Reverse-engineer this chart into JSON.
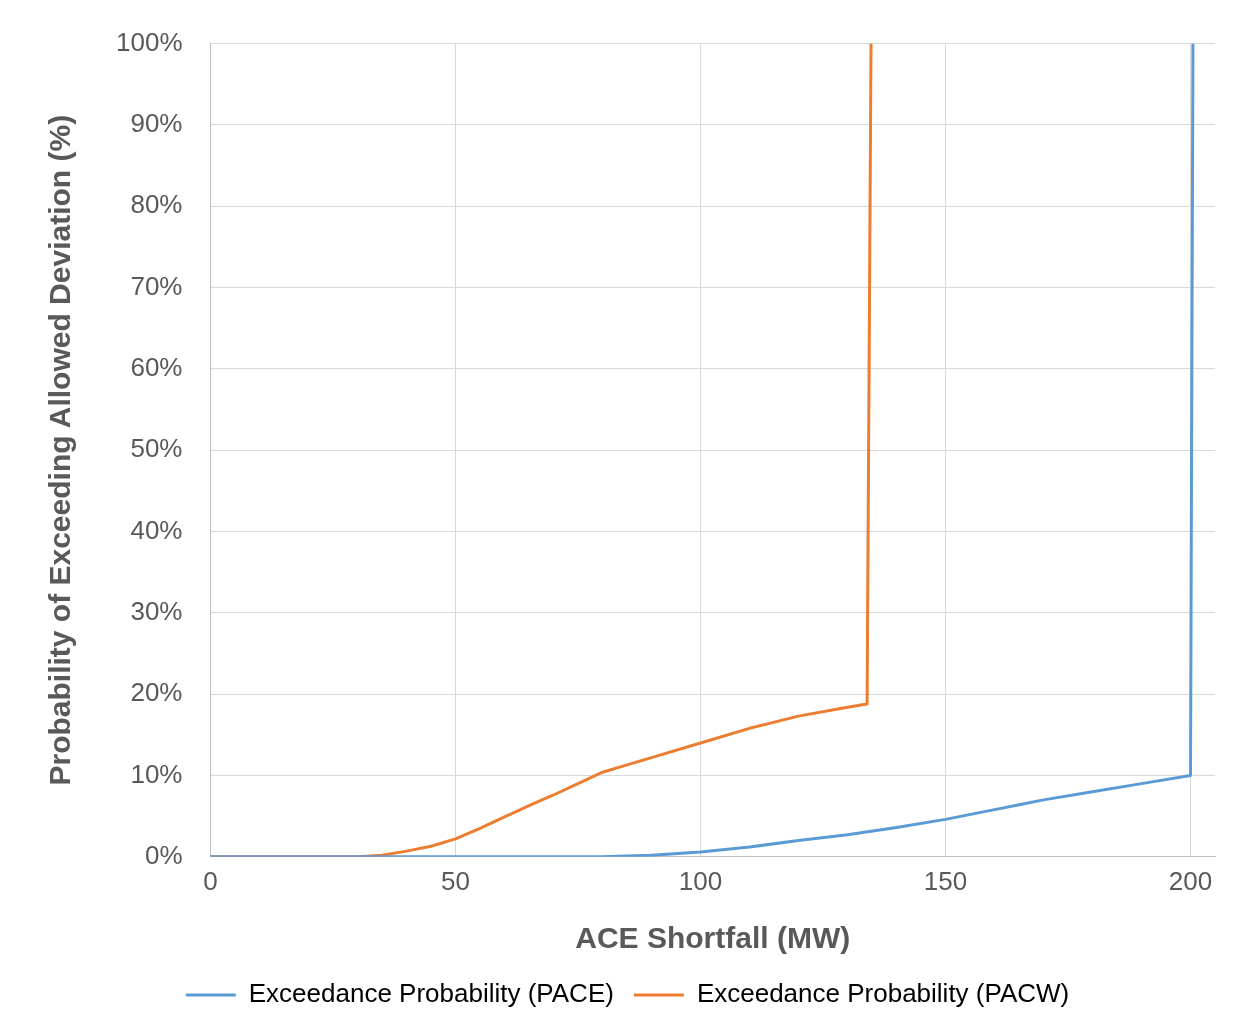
{
  "chart_data": {
    "type": "line",
    "xlabel": "ACE Shortfall (MW)",
    "ylabel": "Probability of Exceeding Allowed Deviation (%)",
    "xlim": [
      0,
      205
    ],
    "xticks": [
      0,
      50,
      100,
      150,
      200
    ],
    "ylim": [
      0,
      100
    ],
    "yticks": [
      {
        "value": 0,
        "label": "0%"
      },
      {
        "value": 10,
        "label": "10%"
      },
      {
        "value": 20,
        "label": "20%"
      },
      {
        "value": 30,
        "label": "30%"
      },
      {
        "value": 40,
        "label": "40%"
      },
      {
        "value": 50,
        "label": "50%"
      },
      {
        "value": 60,
        "label": "60%"
      },
      {
        "value": 70,
        "label": "70%"
      },
      {
        "value": 80,
        "label": "80%"
      },
      {
        "value": 90,
        "label": "90%"
      },
      {
        "value": 100,
        "label": "100%"
      }
    ],
    "grid": true,
    "legend": "bottom",
    "marker": "none",
    "line_style": "solid",
    "series": [
      {
        "name": "Exceedance Probability (PACE)",
        "color": "#5b9bd5",
        "x": [
          0,
          80,
          90,
          100,
          110,
          120,
          130,
          140,
          150,
          160,
          170,
          180,
          190,
          200,
          200.5
        ],
        "values": [
          0,
          0,
          0.2,
          0.6,
          1.2,
          2,
          2.7,
          3.6,
          4.6,
          5.8,
          7,
          8,
          9,
          10,
          100
        ]
      },
      {
        "name": "Exceedance Probability (PACW)",
        "color": "#ed7d31",
        "x": [
          0,
          30,
          35,
          40,
          45,
          50,
          55,
          60,
          65,
          70,
          75,
          80,
          85,
          90,
          100,
          110,
          120,
          130,
          134,
          134.8
        ],
        "values": [
          0,
          0,
          0.2,
          0.7,
          1.3,
          2.2,
          3.5,
          4.9,
          6.3,
          7.6,
          9,
          10.4,
          11.3,
          12.2,
          14,
          15.8,
          17.3,
          18.4,
          18.8,
          100
        ]
      }
    ]
  }
}
